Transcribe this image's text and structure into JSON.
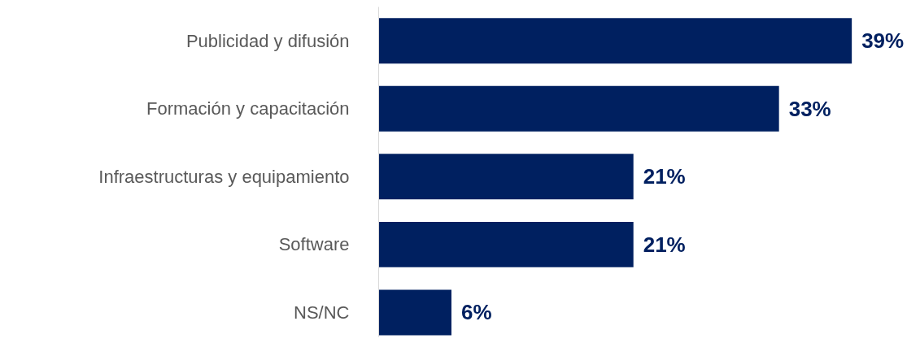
{
  "chart_data": {
    "type": "bar",
    "orientation": "horizontal",
    "categories": [
      "Publicidad y difusión",
      "Formación y capacitación",
      "Infraestructuras y equipamiento",
      "Software",
      "NS/NC"
    ],
    "values": [
      39,
      33,
      21,
      21,
      6
    ],
    "value_labels": [
      "39%",
      "33%",
      "21%",
      "21%",
      "6%"
    ],
    "color": "#002060",
    "grid": false,
    "tick_labels": "y"
  }
}
